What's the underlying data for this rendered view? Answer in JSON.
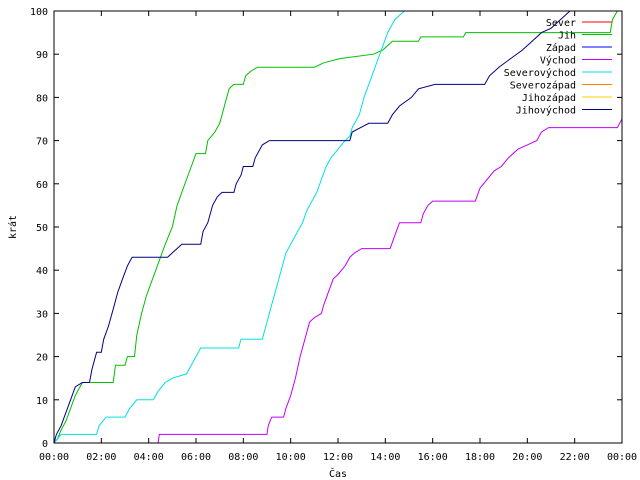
{
  "chart_data": {
    "type": "line",
    "title": "",
    "xlabel": "Čas",
    "ylabel": "krát",
    "xlim": [
      0,
      24
    ],
    "ylim": [
      0,
      100
    ],
    "grid": false,
    "legend_position": "top-right",
    "x_ticks": [
      0,
      2,
      4,
      6,
      8,
      10,
      12,
      14,
      16,
      18,
      20,
      22,
      24
    ],
    "x_tick_labels": [
      "00:00",
      "02:00",
      "04:00",
      "06:00",
      "08:00",
      "10:00",
      "12:00",
      "14:00",
      "16:00",
      "18:00",
      "20:00",
      "22:00",
      "00:00"
    ],
    "y_ticks": [
      0,
      10,
      20,
      30,
      40,
      50,
      60,
      70,
      80,
      90,
      100
    ],
    "y_tick_labels": [
      "0",
      "10",
      "20",
      "30",
      "40",
      "50",
      "60",
      "70",
      "80",
      "90",
      "100"
    ],
    "series": [
      {
        "name": "Sever",
        "color": "#ff0000",
        "points": []
      },
      {
        "name": "Jih",
        "color": "#00c000",
        "points": [
          [
            0,
            0
          ],
          [
            0.15,
            1
          ],
          [
            0.3,
            3
          ],
          [
            0.5,
            5
          ],
          [
            0.7,
            8
          ],
          [
            0.9,
            11
          ],
          [
            1.2,
            14
          ],
          [
            2.5,
            14
          ],
          [
            2.6,
            18
          ],
          [
            3,
            18
          ],
          [
            3.1,
            20
          ],
          [
            3.4,
            20
          ],
          [
            3.5,
            25
          ],
          [
            3.7,
            30
          ],
          [
            3.9,
            34
          ],
          [
            4.1,
            37
          ],
          [
            4.3,
            40
          ],
          [
            4.5,
            43
          ],
          [
            4.7,
            46
          ],
          [
            5,
            50
          ],
          [
            5.2,
            55
          ],
          [
            5.4,
            58
          ],
          [
            5.6,
            61
          ],
          [
            5.8,
            64
          ],
          [
            6,
            67
          ],
          [
            6.4,
            67
          ],
          [
            6.5,
            70
          ],
          [
            6.8,
            72
          ],
          [
            7,
            74
          ],
          [
            7.2,
            78
          ],
          [
            7.4,
            82
          ],
          [
            7.6,
            83
          ],
          [
            8,
            83
          ],
          [
            8.1,
            85
          ],
          [
            8.3,
            86
          ],
          [
            8.6,
            87
          ],
          [
            11,
            87
          ],
          [
            11.4,
            88
          ],
          [
            12.1,
            89
          ],
          [
            13.5,
            90
          ],
          [
            13.9,
            91
          ],
          [
            14.3,
            93
          ],
          [
            15.4,
            93
          ],
          [
            15.5,
            94
          ],
          [
            17.3,
            94
          ],
          [
            17.4,
            95
          ],
          [
            23.5,
            95
          ],
          [
            23.6,
            98
          ],
          [
            23.8,
            100
          ],
          [
            24,
            100
          ]
        ]
      },
      {
        "name": "Západ",
        "color": "#0000ff",
        "points": []
      },
      {
        "name": "Východ",
        "color": "#c000ff",
        "points": [
          [
            4.4,
            0
          ],
          [
            4.45,
            2
          ],
          [
            9,
            2
          ],
          [
            9.05,
            4
          ],
          [
            9.2,
            6
          ],
          [
            9.7,
            6
          ],
          [
            9.8,
            8
          ],
          [
            10,
            11
          ],
          [
            10.2,
            15
          ],
          [
            10.4,
            20
          ],
          [
            10.6,
            24
          ],
          [
            10.8,
            28
          ],
          [
            11,
            29
          ],
          [
            11.3,
            30
          ],
          [
            11.4,
            32
          ],
          [
            11.6,
            35
          ],
          [
            11.8,
            38
          ],
          [
            12,
            39
          ],
          [
            12.3,
            41
          ],
          [
            12.5,
            43
          ],
          [
            12.7,
            44
          ],
          [
            13,
            45
          ],
          [
            14.2,
            45
          ],
          [
            14.4,
            48
          ],
          [
            14.6,
            51
          ],
          [
            15.5,
            51
          ],
          [
            15.6,
            53
          ],
          [
            15.8,
            55
          ],
          [
            16,
            56
          ],
          [
            17.8,
            56
          ],
          [
            18,
            59
          ],
          [
            18.3,
            61
          ],
          [
            18.6,
            63
          ],
          [
            18.9,
            64
          ],
          [
            19.2,
            66
          ],
          [
            19.6,
            68
          ],
          [
            20,
            69
          ],
          [
            20.4,
            70
          ],
          [
            20.6,
            72
          ],
          [
            20.9,
            73
          ],
          [
            23.8,
            73
          ],
          [
            24,
            75
          ]
        ]
      },
      {
        "name": "Severovýchod",
        "color": "#00e0e0",
        "points": [
          [
            0,
            0
          ],
          [
            0.3,
            2
          ],
          [
            1.8,
            2
          ],
          [
            1.9,
            4
          ],
          [
            2.2,
            6
          ],
          [
            3,
            6
          ],
          [
            3.2,
            8
          ],
          [
            3.5,
            10
          ],
          [
            4.2,
            10
          ],
          [
            4.4,
            12
          ],
          [
            4.7,
            14
          ],
          [
            5,
            15
          ],
          [
            5.6,
            16
          ],
          [
            5.8,
            18
          ],
          [
            6,
            20
          ],
          [
            6.2,
            22
          ],
          [
            7.8,
            22
          ],
          [
            7.9,
            24
          ],
          [
            8.8,
            24
          ],
          [
            8.9,
            26
          ],
          [
            9,
            28
          ],
          [
            9.2,
            32
          ],
          [
            9.4,
            36
          ],
          [
            9.6,
            40
          ],
          [
            9.8,
            44
          ],
          [
            10,
            46
          ],
          [
            10.2,
            48
          ],
          [
            10.5,
            51
          ],
          [
            10.7,
            54
          ],
          [
            10.9,
            56
          ],
          [
            11.1,
            58
          ],
          [
            11.3,
            61
          ],
          [
            11.5,
            64
          ],
          [
            11.7,
            66
          ],
          [
            12,
            68
          ],
          [
            12.3,
            70
          ],
          [
            12.5,
            71
          ],
          [
            12.6,
            73
          ],
          [
            12.9,
            76
          ],
          [
            13.1,
            80
          ],
          [
            13.3,
            83
          ],
          [
            13.5,
            86
          ],
          [
            13.7,
            89
          ],
          [
            13.9,
            92
          ],
          [
            14.1,
            95
          ],
          [
            14.4,
            98
          ],
          [
            14.8,
            100
          ]
        ]
      },
      {
        "name": "Severozápad",
        "color": "#ff8000",
        "points": []
      },
      {
        "name": "Jihozápad",
        "color": "#ffd000",
        "points": []
      },
      {
        "name": "Jihovýchod",
        "color": "#000080",
        "points": [
          [
            0,
            0
          ],
          [
            0.1,
            2
          ],
          [
            0.3,
            4
          ],
          [
            0.5,
            7
          ],
          [
            0.7,
            10
          ],
          [
            0.9,
            13
          ],
          [
            1.2,
            14
          ],
          [
            1.5,
            14
          ],
          [
            1.6,
            17
          ],
          [
            1.8,
            21
          ],
          [
            2,
            21
          ],
          [
            2.1,
            24
          ],
          [
            2.3,
            27
          ],
          [
            2.5,
            31
          ],
          [
            2.7,
            35
          ],
          [
            2.9,
            38
          ],
          [
            3.1,
            41
          ],
          [
            3.3,
            43
          ],
          [
            4.8,
            43
          ],
          [
            5,
            44
          ],
          [
            5.4,
            46
          ],
          [
            6.2,
            46
          ],
          [
            6.3,
            49
          ],
          [
            6.5,
            51
          ],
          [
            6.7,
            55
          ],
          [
            6.9,
            57
          ],
          [
            7.1,
            58
          ],
          [
            7.6,
            58
          ],
          [
            7.7,
            60
          ],
          [
            7.9,
            62
          ],
          [
            8,
            64
          ],
          [
            8.4,
            64
          ],
          [
            8.5,
            66
          ],
          [
            8.8,
            69
          ],
          [
            9.1,
            70
          ],
          [
            12.5,
            70
          ],
          [
            12.6,
            72
          ],
          [
            13.3,
            74
          ],
          [
            14.1,
            74
          ],
          [
            14.3,
            76
          ],
          [
            14.6,
            78
          ],
          [
            15.1,
            80
          ],
          [
            15.4,
            82
          ],
          [
            16.1,
            83
          ],
          [
            18.2,
            83
          ],
          [
            18.4,
            85
          ],
          [
            18.8,
            87
          ],
          [
            19.3,
            89
          ],
          [
            19.8,
            91
          ],
          [
            20.2,
            93
          ],
          [
            20.6,
            95
          ],
          [
            21,
            96
          ],
          [
            21.4,
            98
          ],
          [
            21.8,
            100
          ]
        ]
      }
    ]
  }
}
